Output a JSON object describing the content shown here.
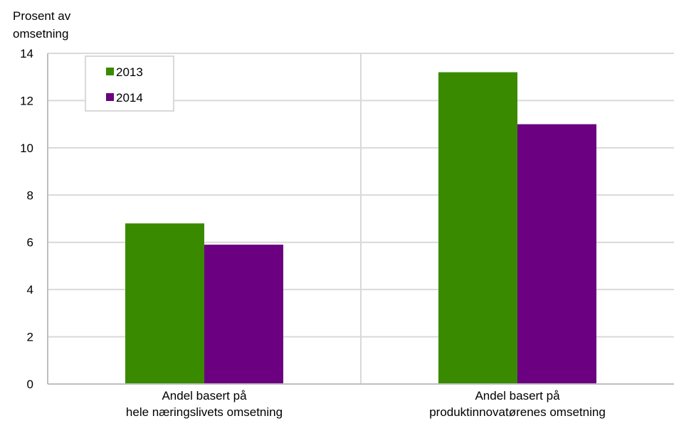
{
  "chart_data": {
    "type": "bar",
    "title": "",
    "ylabel": [
      "Prosent av",
      "omsetning"
    ],
    "xlabel": "",
    "categories": [
      [
        "Andel basert på",
        "hele næringslivets omsetning"
      ],
      [
        "Andel basert på",
        "produktinnovatørenes omsetning"
      ]
    ],
    "series": [
      {
        "name": "2013",
        "values": [
          6.8,
          13.2
        ],
        "color": "#3a8a00"
      },
      {
        "name": "2014",
        "values": [
          5.9,
          11.0
        ],
        "color": "#6b0080"
      }
    ],
    "ylim": [
      0,
      14
    ],
    "yticks": [
      "0",
      "2",
      "4",
      "6",
      "8",
      "10",
      "12",
      "14"
    ],
    "grid": true,
    "legend_position": "top-left",
    "colors": {
      "grid": "#d9d9d9",
      "axis": "#bfbfbf",
      "legend_border": "#d9d9d9"
    }
  }
}
